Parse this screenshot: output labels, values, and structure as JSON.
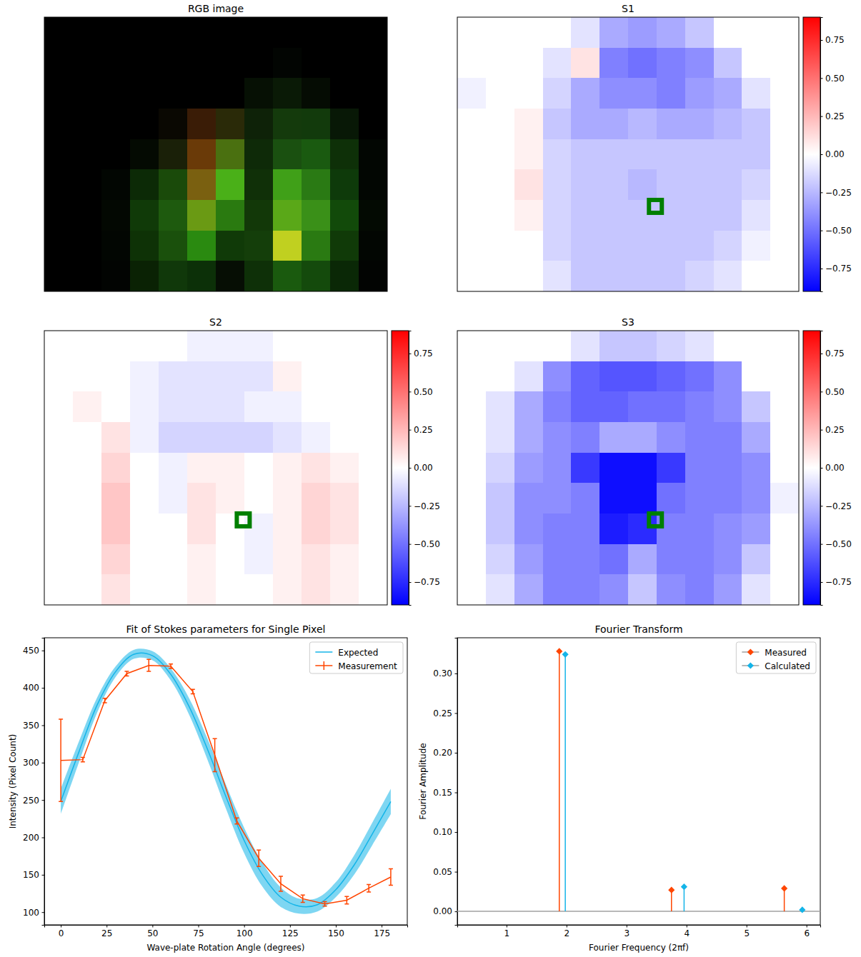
{
  "chart_data": [
    {
      "type": "image",
      "title": "RGB image",
      "pixels": [
        [
          "#000000",
          "#000000",
          "#000000",
          "#000000",
          "#000000",
          "#000000",
          "#000000",
          "#000000",
          "#000000",
          "#000000",
          "#000000",
          "#000000"
        ],
        [
          "#000000",
          "#000000",
          "#000000",
          "#000000",
          "#000000",
          "#000000",
          "#000000",
          "#000000",
          "#020502",
          "#000000",
          "#000000",
          "#000000"
        ],
        [
          "#000000",
          "#000000",
          "#000000",
          "#000000",
          "#000000",
          "#000000",
          "#000000",
          "#061004",
          "#0a1a06",
          "#050c03",
          "#000000",
          "#000000"
        ],
        [
          "#000000",
          "#000000",
          "#000000",
          "#000000",
          "#0a0802",
          "#3a1c06",
          "#2a2a08",
          "#0e2208",
          "#143a0c",
          "#123a0c",
          "#081806",
          "#000000"
        ],
        [
          "#000000",
          "#000000",
          "#000000",
          "#040a02",
          "#1a2008",
          "#6a3a08",
          "#4a7010",
          "#0e2a08",
          "#1a5010",
          "#1a5a10",
          "#0e3008",
          "#020602"
        ],
        [
          "#000000",
          "#000000",
          "#020602",
          "#0c2a06",
          "#1a4a0a",
          "#7a6010",
          "#4ab018",
          "#103008",
          "#40a018",
          "#2a7a14",
          "#0e3a0a",
          "#020602"
        ],
        [
          "#000000",
          "#000000",
          "#030802",
          "#103a08",
          "#1e5a0e",
          "#6a9a14",
          "#2a7a10",
          "#123808",
          "#5aa818",
          "#3a9018",
          "#124a0a",
          "#030a02"
        ],
        [
          "#000000",
          "#000000",
          "#020602",
          "#0e3206",
          "#1a500c",
          "#2a8a10",
          "#103a08",
          "#143e0a",
          "#c0d020",
          "#2a7a12",
          "#103a08",
          "#020602"
        ],
        [
          "#000000",
          "#000000",
          "#020402",
          "#0a2204",
          "#10380a",
          "#0c3008",
          "#060e04",
          "#0e3008",
          "#1a5a0e",
          "#144a0c",
          "#0a2806",
          "#020402"
        ]
      ]
    },
    {
      "type": "heatmap",
      "title": "S1",
      "color": "#007f00",
      "highlight": [
        0.58,
        0.69
      ],
      "colorbar_range": [
        -0.9,
        0.9
      ],
      "colorbar_ticks": [
        {
          "value": -0.75,
          "label": "−0.75"
        },
        {
          "value": -0.5,
          "label": "−0.50"
        },
        {
          "value": -0.25,
          "label": "−0.25"
        },
        {
          "value": 0,
          "label": "0.00"
        },
        {
          "value": 0.25,
          "label": "0.25"
        },
        {
          "value": 0.5,
          "label": "0.50"
        },
        {
          "value": 0.75,
          "label": "0.75"
        }
      ],
      "cells": [
        [
          0,
          0,
          0,
          0,
          -0.1,
          -0.3,
          -0.35,
          -0.3,
          -0.2,
          0,
          0,
          0
        ],
        [
          0,
          0,
          0,
          -0.1,
          0.1,
          -0.45,
          -0.5,
          -0.45,
          -0.4,
          -0.2,
          0,
          0
        ],
        [
          -0.05,
          0,
          0,
          -0.15,
          -0.3,
          -0.4,
          -0.4,
          -0.45,
          -0.35,
          -0.3,
          -0.1,
          0
        ],
        [
          0,
          0,
          0.05,
          -0.2,
          -0.3,
          -0.3,
          -0.25,
          -0.3,
          -0.3,
          -0.25,
          -0.2,
          0
        ],
        [
          0,
          0,
          0.05,
          -0.15,
          -0.2,
          -0.2,
          -0.2,
          -0.2,
          -0.2,
          -0.2,
          -0.2,
          0
        ],
        [
          0,
          0,
          0.1,
          -0.15,
          -0.2,
          -0.2,
          -0.25,
          -0.2,
          -0.2,
          -0.2,
          -0.15,
          0
        ],
        [
          0,
          0,
          0.05,
          -0.15,
          -0.2,
          -0.2,
          -0.2,
          -0.2,
          -0.2,
          -0.2,
          -0.1,
          0
        ],
        [
          0,
          0,
          0,
          -0.15,
          -0.2,
          -0.2,
          -0.2,
          -0.2,
          -0.2,
          -0.15,
          -0.05,
          0
        ],
        [
          0,
          0,
          0,
          -0.1,
          -0.2,
          -0.2,
          -0.2,
          -0.2,
          -0.15,
          -0.1,
          0,
          0
        ]
      ]
    },
    {
      "type": "heatmap",
      "title": "S2",
      "color": "#007f00",
      "highlight": [
        0.58,
        0.69
      ],
      "colorbar_range": [
        -0.9,
        0.9
      ],
      "colorbar_ticks": [
        {
          "value": -0.75,
          "label": "−0.75"
        },
        {
          "value": -0.5,
          "label": "−0.50"
        },
        {
          "value": -0.25,
          "label": "−0.25"
        },
        {
          "value": 0,
          "label": "0.00"
        },
        {
          "value": 0.25,
          "label": "0.25"
        },
        {
          "value": 0.5,
          "label": "0.50"
        },
        {
          "value": 0.75,
          "label": "0.75"
        }
      ],
      "cells": [
        [
          0,
          0,
          0,
          0,
          0,
          -0.05,
          -0.05,
          -0.05,
          0,
          0,
          0,
          0
        ],
        [
          0,
          0,
          0,
          -0.05,
          -0.1,
          -0.1,
          -0.1,
          -0.1,
          0.05,
          0,
          0,
          0
        ],
        [
          0,
          0.05,
          0,
          -0.05,
          -0.1,
          -0.1,
          -0.1,
          -0.05,
          -0.05,
          0,
          0,
          0
        ],
        [
          0,
          0,
          0.1,
          -0.05,
          -0.15,
          -0.15,
          -0.15,
          -0.15,
          -0.1,
          -0.05,
          0,
          0
        ],
        [
          0,
          0,
          0.15,
          0,
          -0.05,
          0.05,
          0.05,
          0,
          0.05,
          0.1,
          0.05,
          0
        ],
        [
          0,
          0,
          0.2,
          0,
          -0.05,
          0.1,
          0.05,
          0,
          0.05,
          0.15,
          0.1,
          0
        ],
        [
          0,
          0,
          0.2,
          0,
          0,
          0.1,
          0,
          -0.05,
          0.05,
          0.15,
          0.1,
          0
        ],
        [
          0,
          0,
          0.15,
          0,
          0,
          0.05,
          0,
          -0.05,
          0.05,
          0.1,
          0.05,
          0
        ],
        [
          0,
          0,
          0.1,
          0,
          0,
          0.05,
          0,
          0,
          0.05,
          0.1,
          0.05,
          0
        ]
      ]
    },
    {
      "type": "heatmap",
      "title": "S3",
      "color": "#007f00",
      "highlight": [
        0.58,
        0.69
      ],
      "colorbar_range": [
        -0.9,
        0.9
      ],
      "colorbar_ticks": [
        {
          "value": -0.75,
          "label": "−0.75"
        },
        {
          "value": -0.5,
          "label": "−0.50"
        },
        {
          "value": -0.25,
          "label": "−0.25"
        },
        {
          "value": 0,
          "label": "0.00"
        },
        {
          "value": 0.25,
          "label": "0.25"
        },
        {
          "value": 0.5,
          "label": "0.50"
        },
        {
          "value": 0.75,
          "label": "0.75"
        }
      ],
      "cells": [
        [
          0,
          0,
          0,
          0,
          -0.1,
          -0.2,
          -0.2,
          -0.15,
          -0.1,
          0,
          0,
          0
        ],
        [
          0,
          0,
          -0.1,
          -0.4,
          -0.55,
          -0.6,
          -0.6,
          -0.55,
          -0.5,
          -0.4,
          0,
          0
        ],
        [
          0,
          -0.1,
          -0.3,
          -0.45,
          -0.55,
          -0.55,
          -0.5,
          -0.5,
          -0.45,
          -0.4,
          -0.2,
          0
        ],
        [
          0,
          -0.1,
          -0.3,
          -0.4,
          -0.45,
          -0.3,
          -0.3,
          -0.4,
          -0.45,
          -0.45,
          -0.3,
          0
        ],
        [
          0,
          -0.15,
          -0.35,
          -0.4,
          -0.7,
          -0.85,
          -0.85,
          -0.7,
          -0.45,
          -0.45,
          -0.4,
          0
        ],
        [
          0,
          -0.2,
          -0.4,
          -0.4,
          -0.45,
          -0.85,
          -0.85,
          -0.5,
          -0.45,
          -0.45,
          -0.4,
          -0.05
        ],
        [
          0,
          -0.2,
          -0.4,
          -0.45,
          -0.45,
          -0.8,
          -0.75,
          -0.45,
          -0.45,
          -0.4,
          -0.35,
          0
        ],
        [
          0,
          -0.15,
          -0.35,
          -0.45,
          -0.45,
          -0.5,
          -0.3,
          -0.45,
          -0.45,
          -0.4,
          -0.2,
          0
        ],
        [
          0,
          -0.1,
          -0.3,
          -0.45,
          -0.45,
          -0.4,
          -0.2,
          -0.4,
          -0.45,
          -0.35,
          -0.1,
          0
        ]
      ]
    },
    {
      "type": "line",
      "title": "Fit of Stokes parameters for Single Pixel",
      "xlabel": "Wave-plate Rotation Angle (degrees)",
      "ylabel": "Intensity (Pixel Count)",
      "xlim": [
        -9,
        189
      ],
      "ylim": [
        83,
        467
      ],
      "xticks": [
        0,
        25,
        50,
        75,
        100,
        125,
        150,
        175
      ],
      "yticks": [
        100,
        150,
        200,
        250,
        300,
        350,
        400,
        450
      ],
      "legend": "upper right",
      "series": [
        {
          "name": "Expected",
          "color": "#14b4e8",
          "x": [
            0,
            10,
            20,
            30,
            40,
            50,
            60,
            70,
            80,
            90,
            100,
            110,
            120,
            130,
            140,
            150,
            160,
            170,
            180
          ],
          "values": [
            248,
            315,
            378,
            422,
            445,
            443,
            418,
            375,
            318,
            255,
            196,
            150,
            120,
            108,
            110,
            130,
            163,
            205,
            248
          ],
          "band": [
            17,
            14,
            10,
            7,
            6,
            6,
            8,
            11,
            14,
            16,
            17,
            16,
            13,
            10,
            9,
            10,
            13,
            15,
            17
          ]
        },
        {
          "name": "Measurement",
          "color": "#ff4500",
          "x": [
            0,
            12,
            24,
            36,
            48,
            60,
            72,
            84,
            96,
            108,
            120,
            132,
            144,
            156,
            168,
            180
          ],
          "values": [
            303,
            304,
            383,
            419,
            430,
            429,
            395,
            310,
            222,
            172,
            138,
            118,
            111,
            116,
            132,
            147
          ],
          "errors": [
            55,
            3,
            3,
            3,
            8,
            3,
            3,
            22,
            4,
            11,
            10,
            5,
            3,
            5,
            5,
            11
          ]
        }
      ]
    },
    {
      "type": "stem",
      "title": "Fourier Transform",
      "xlabel": "Fourier Frequency (2πf)",
      "ylabel": "Fourier Amplitude",
      "xlim": [
        0.18,
        6.23
      ],
      "ylim": [
        -0.017,
        0.345
      ],
      "xticks": [
        1,
        2,
        3,
        4,
        5,
        6
      ],
      "yticks": [
        {
          "value": 0,
          "label": "0.00"
        },
        {
          "value": 0.05,
          "label": "0.05"
        },
        {
          "value": 0.1,
          "label": "0.10"
        },
        {
          "value": 0.15,
          "label": "0.15"
        },
        {
          "value": 0.2,
          "label": "0.20"
        },
        {
          "value": 0.25,
          "label": "0.25"
        },
        {
          "value": 0.3,
          "label": "0.30"
        }
      ],
      "baseline": 0,
      "legend": "upper right",
      "series": [
        {
          "name": "Measured",
          "color": "#ff4500",
          "marker": "diamond",
          "x": [
            1.88,
            3.75,
            5.63
          ],
          "values": [
            0.328,
            0.027,
            0.029
          ]
        },
        {
          "name": "Calculated",
          "color": "#14b4e8",
          "marker": "diamond",
          "x": [
            1.98,
            3.96,
            5.93
          ],
          "values": [
            0.324,
            0.031,
            0.002
          ]
        }
      ]
    }
  ]
}
